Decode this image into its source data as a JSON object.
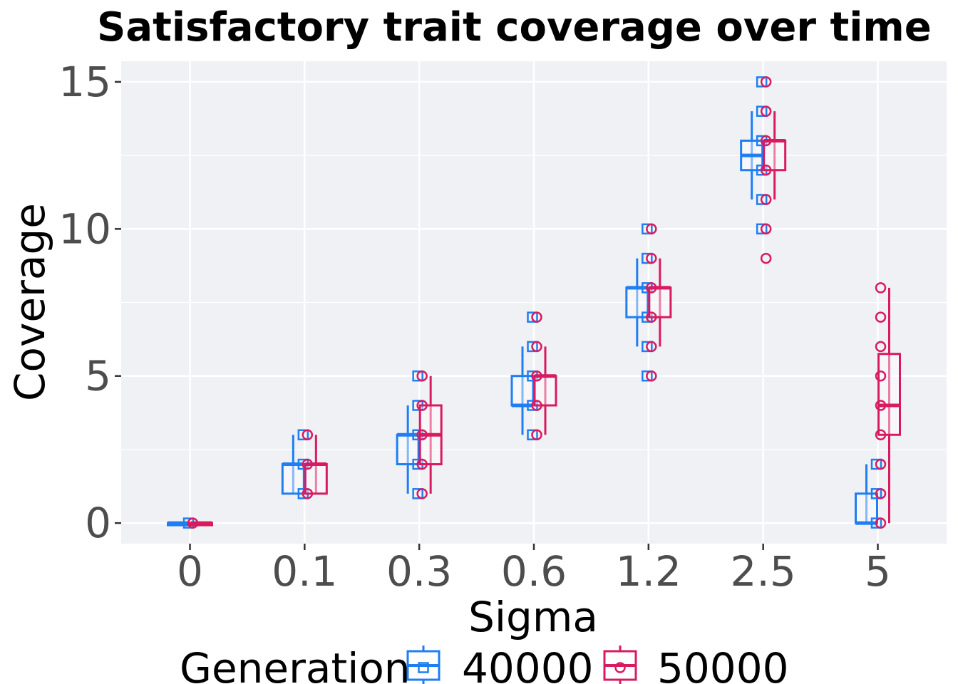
{
  "chart_data": {
    "type": "boxplot",
    "title": "Satisfactory trait coverage over time",
    "xlabel": "Sigma",
    "ylabel": "Coverage",
    "categories": [
      "0",
      "0.1",
      "0.3",
      "0.6",
      "1.2",
      "2.5",
      "5"
    ],
    "yticks": [
      0,
      5,
      10,
      15
    ],
    "ylim": [
      -0.7,
      15.7
    ],
    "legend": {
      "title": "Generation",
      "position": "bottom"
    },
    "series": [
      {
        "name": "40000",
        "color": "#1e7ef2",
        "marker": "square",
        "boxes": [
          {
            "min": 0,
            "q1": 0,
            "median": 0,
            "q3": 0,
            "max": 0,
            "points": [
              0
            ]
          },
          {
            "min": 1,
            "q1": 1,
            "median": 2,
            "q3": 2,
            "max": 3,
            "points": [
              1,
              2,
              3
            ]
          },
          {
            "min": 1,
            "q1": 2,
            "median": 3,
            "q3": 3,
            "max": 4,
            "points": [
              1,
              2,
              3,
              4,
              5
            ]
          },
          {
            "min": 3,
            "q1": 4,
            "median": 4,
            "q3": 5,
            "max": 6,
            "points": [
              3,
              4,
              5,
              6,
              7
            ]
          },
          {
            "min": 6,
            "q1": 7,
            "median": 8,
            "q3": 8,
            "max": 9,
            "points": [
              5,
              6,
              7,
              8,
              9,
              10
            ]
          },
          {
            "min": 11,
            "q1": 12,
            "median": 12.5,
            "q3": 13,
            "max": 14,
            "points": [
              10,
              11,
              12,
              13,
              14,
              15
            ]
          },
          {
            "min": 0,
            "q1": 0,
            "median": 0,
            "q3": 1,
            "max": 2,
            "points": [
              0,
              1,
              2
            ]
          }
        ]
      },
      {
        "name": "50000",
        "color": "#d81b60",
        "marker": "circle",
        "boxes": [
          {
            "min": 0,
            "q1": 0,
            "median": 0,
            "q3": 0,
            "max": 0,
            "points": [
              0
            ]
          },
          {
            "min": 1,
            "q1": 1,
            "median": 2,
            "q3": 2,
            "max": 3,
            "points": [
              1,
              2,
              3
            ]
          },
          {
            "min": 1,
            "q1": 2,
            "median": 3,
            "q3": 4,
            "max": 5,
            "points": [
              1,
              2,
              3,
              4,
              5
            ]
          },
          {
            "min": 3,
            "q1": 4,
            "median": 5,
            "q3": 5,
            "max": 6,
            "points": [
              3,
              4,
              5,
              6,
              7
            ]
          },
          {
            "min": 6,
            "q1": 7,
            "median": 8,
            "q3": 8,
            "max": 9,
            "points": [
              5,
              6,
              7,
              8,
              9,
              10
            ]
          },
          {
            "min": 11,
            "q1": 12,
            "median": 13,
            "q3": 13,
            "max": 14,
            "points": [
              9,
              10,
              11,
              12,
              13,
              14,
              15
            ]
          },
          {
            "min": 0,
            "q1": 3,
            "median": 4,
            "q3": 5.75,
            "max": 8,
            "points": [
              0,
              1,
              2,
              3,
              4,
              5,
              6,
              7,
              8
            ]
          }
        ]
      }
    ]
  }
}
